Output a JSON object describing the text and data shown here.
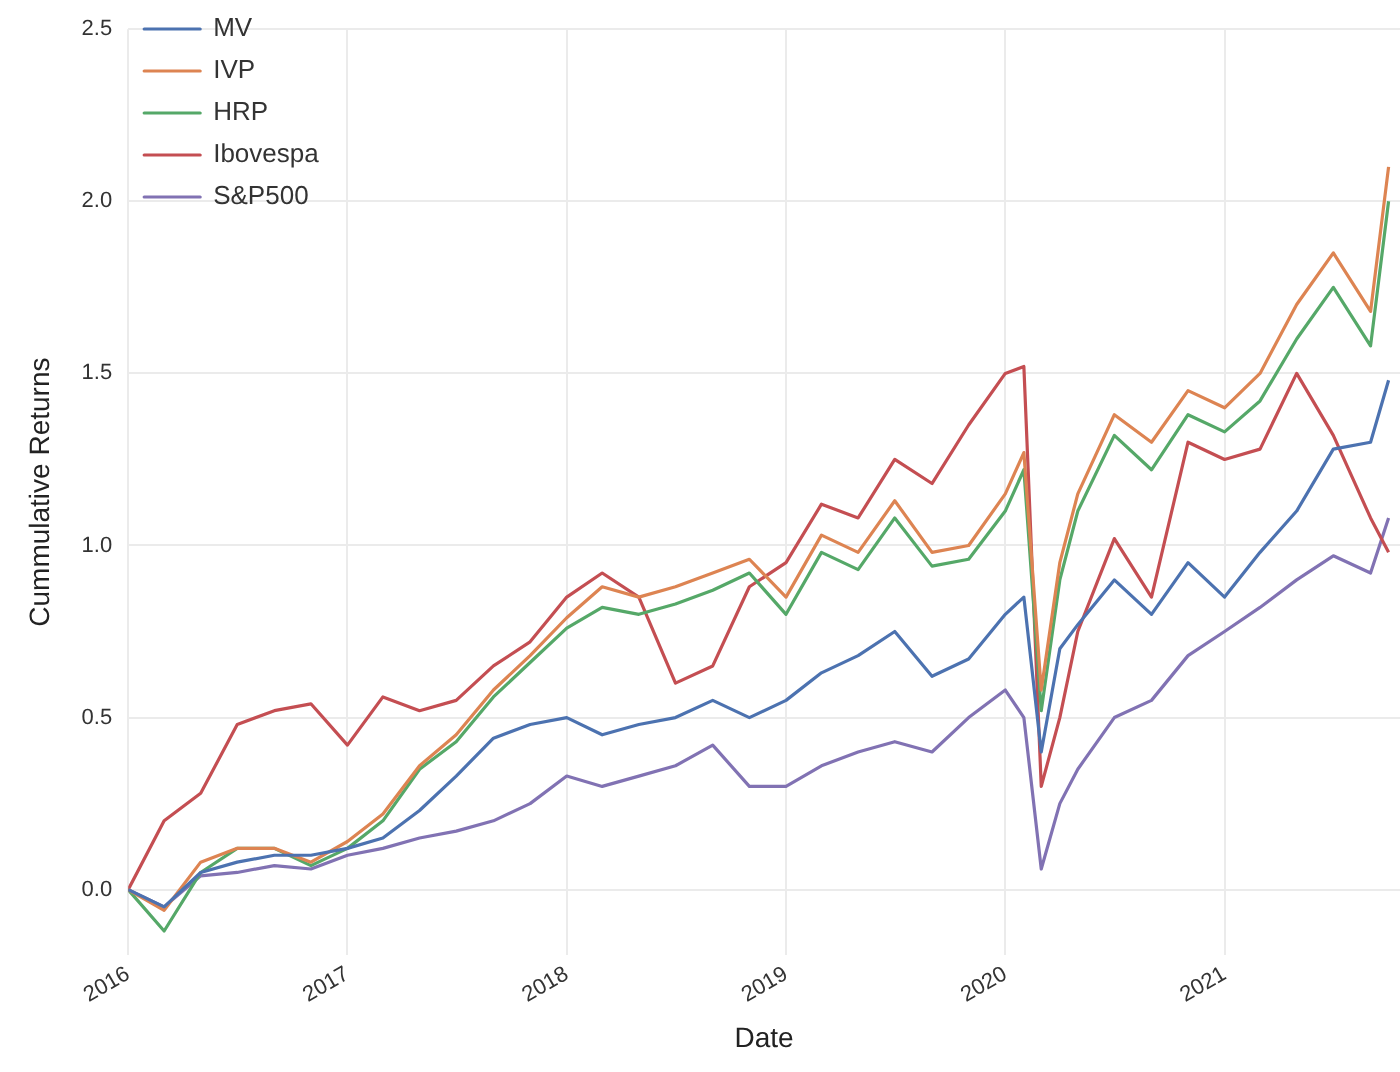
{
  "chart_data": {
    "type": "line",
    "xlabel": "Date",
    "ylabel": "Cummulative Returns",
    "x": [
      "2016-01",
      "2016-03",
      "2016-05",
      "2016-07",
      "2016-09",
      "2016-11",
      "2017-01",
      "2017-03",
      "2017-05",
      "2017-07",
      "2017-09",
      "2017-11",
      "2018-01",
      "2018-03",
      "2018-05",
      "2018-07",
      "2018-09",
      "2018-11",
      "2019-01",
      "2019-03",
      "2019-05",
      "2019-07",
      "2019-09",
      "2019-11",
      "2020-01",
      "2020-02",
      "2020-03",
      "2020-04",
      "2020-05",
      "2020-07",
      "2020-09",
      "2020-11",
      "2021-01",
      "2021-03",
      "2021-05",
      "2021-07",
      "2021-09",
      "2021-10"
    ],
    "series": [
      {
        "name": "MV",
        "color": "#4c72b0",
        "values": [
          0,
          -0.05,
          0.05,
          0.08,
          0.1,
          0.1,
          0.12,
          0.15,
          0.23,
          0.33,
          0.44,
          0.48,
          0.5,
          0.45,
          0.48,
          0.5,
          0.55,
          0.5,
          0.55,
          0.63,
          0.68,
          0.75,
          0.62,
          0.67,
          0.8,
          0.85,
          0.4,
          0.7,
          0.77,
          0.9,
          0.8,
          0.95,
          0.85,
          0.98,
          1.1,
          1.28,
          1.3,
          1.48
        ]
      },
      {
        "name": "IVP",
        "color": "#dd8452",
        "values": [
          0,
          -0.06,
          0.08,
          0.12,
          0.12,
          0.08,
          0.14,
          0.22,
          0.36,
          0.45,
          0.58,
          0.68,
          0.79,
          0.88,
          0.85,
          0.88,
          0.92,
          0.96,
          0.85,
          1.03,
          0.98,
          1.13,
          0.98,
          1.0,
          1.15,
          1.27,
          0.58,
          0.95,
          1.15,
          1.38,
          1.3,
          1.45,
          1.4,
          1.5,
          1.7,
          1.85,
          1.68,
          2.1
        ]
      },
      {
        "name": "HRP",
        "color": "#55a868",
        "values": [
          0,
          -0.12,
          0.05,
          0.12,
          0.12,
          0.07,
          0.12,
          0.2,
          0.35,
          0.43,
          0.56,
          0.66,
          0.76,
          0.82,
          0.8,
          0.83,
          0.87,
          0.92,
          0.8,
          0.98,
          0.93,
          1.08,
          0.94,
          0.96,
          1.1,
          1.22,
          0.52,
          0.9,
          1.1,
          1.32,
          1.22,
          1.38,
          1.33,
          1.42,
          1.6,
          1.75,
          1.58,
          2.0
        ]
      },
      {
        "name": "Ibovespa",
        "color": "#c44e52",
        "values": [
          0,
          0.2,
          0.28,
          0.48,
          0.52,
          0.54,
          0.42,
          0.56,
          0.52,
          0.55,
          0.65,
          0.72,
          0.85,
          0.92,
          0.85,
          0.6,
          0.65,
          0.88,
          0.95,
          1.12,
          1.08,
          1.25,
          1.18,
          1.35,
          1.5,
          1.52,
          0.3,
          0.5,
          0.75,
          1.02,
          0.85,
          1.3,
          1.25,
          1.28,
          1.5,
          1.32,
          1.08,
          0.98
        ]
      },
      {
        "name": "S&P500",
        "color": "#8172b3",
        "values": [
          0,
          -0.05,
          0.04,
          0.05,
          0.07,
          0.06,
          0.1,
          0.12,
          0.15,
          0.17,
          0.2,
          0.25,
          0.33,
          0.3,
          0.33,
          0.36,
          0.42,
          0.3,
          0.3,
          0.36,
          0.4,
          0.43,
          0.4,
          0.5,
          0.58,
          0.5,
          0.06,
          0.25,
          0.35,
          0.5,
          0.55,
          0.68,
          0.75,
          0.82,
          0.9,
          0.97,
          0.92,
          1.08
        ]
      }
    ],
    "xlim": [
      "2016-01",
      "2021-10-20"
    ],
    "xticks": [
      "2016",
      "2017",
      "2018",
      "2019",
      "2020",
      "2021"
    ],
    "ylim": [
      -0.19,
      2.5
    ],
    "yticks": [
      {
        "value": 0,
        "label": "0.0"
      },
      0.5,
      {
        "value": 1,
        "label": "1.0"
      },
      1.5,
      {
        "value": 2,
        "label": "2.0"
      },
      2.5
    ],
    "grid": true,
    "legend": "top left",
    "marker": "none",
    "line_style": "solid"
  }
}
